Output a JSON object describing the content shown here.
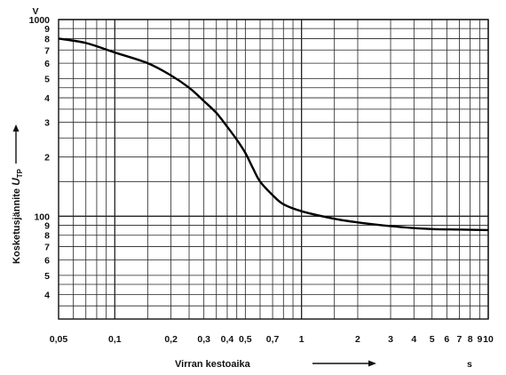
{
  "chart_data": {
    "type": "line",
    "x_scale": "log",
    "y_scale": "log",
    "xlim": [
      0.05,
      10
    ],
    "ylim": [
      30,
      1000
    ],
    "grid": true,
    "ylabel": "Kosketusjännite",
    "ylabel_symbol": "U",
    "ylabel_subscript": "TP",
    "yunit": "V",
    "xlabel": "Virran kestoaika",
    "xunit": "s",
    "x_gridlines": [
      0.05,
      0.06,
      0.07,
      0.08,
      0.09,
      0.1,
      0.15,
      0.2,
      0.25,
      0.3,
      0.35,
      0.4,
      0.45,
      0.5,
      0.6,
      0.7,
      0.8,
      0.9,
      1,
      1.5,
      2,
      3,
      4,
      5,
      6,
      7,
      8,
      9,
      10
    ],
    "y_gridlines": [
      30,
      35,
      40,
      45,
      50,
      60,
      70,
      80,
      90,
      100,
      150,
      200,
      250,
      300,
      350,
      400,
      450,
      500,
      600,
      700,
      800,
      900,
      1000
    ],
    "x_tick_labels": [
      {
        "value": 0.05,
        "label": "0,05"
      },
      {
        "value": 0.1,
        "label": "0,1"
      },
      {
        "value": 0.2,
        "label": "0,2"
      },
      {
        "value": 0.3,
        "label": "0,3"
      },
      {
        "value": 0.4,
        "label": "0,4"
      },
      {
        "value": 0.5,
        "label": "0,5"
      },
      {
        "value": 0.7,
        "label": "0,7"
      },
      {
        "value": 1,
        "label": "1"
      },
      {
        "value": 2,
        "label": "2"
      },
      {
        "value": 3,
        "label": "3"
      },
      {
        "value": 4,
        "label": "4"
      },
      {
        "value": 5,
        "label": "5"
      },
      {
        "value": 6,
        "label": "6"
      },
      {
        "value": 7,
        "label": "7"
      },
      {
        "value": 8,
        "label": "8"
      },
      {
        "value": 9,
        "label": "9"
      },
      {
        "value": 10,
        "label": "10"
      }
    ],
    "y_tick_labels": [
      {
        "value": 1000,
        "label": "1000"
      },
      {
        "value": 900,
        "label": "9"
      },
      {
        "value": 800,
        "label": "8"
      },
      {
        "value": 700,
        "label": "7"
      },
      {
        "value": 600,
        "label": "6"
      },
      {
        "value": 500,
        "label": "5"
      },
      {
        "value": 400,
        "label": "4"
      },
      {
        "value": 300,
        "label": "3"
      },
      {
        "value": 200,
        "label": "2"
      },
      {
        "value": 100,
        "label": "100"
      },
      {
        "value": 90,
        "label": "9"
      },
      {
        "value": 80,
        "label": "8"
      },
      {
        "value": 70,
        "label": "7"
      },
      {
        "value": 60,
        "label": "6"
      },
      {
        "value": 50,
        "label": "5"
      },
      {
        "value": 40,
        "label": "4"
      }
    ],
    "series": [
      {
        "x": [
          0.05,
          0.07,
          0.1,
          0.15,
          0.2,
          0.25,
          0.3,
          0.35,
          0.4,
          0.45,
          0.5,
          0.55,
          0.6,
          0.7,
          0.8,
          1,
          1.5,
          2,
          3,
          4,
          5,
          7,
          10
        ],
        "y": [
          800,
          760,
          680,
          600,
          520,
          450,
          385,
          335,
          285,
          245,
          210,
          175,
          150,
          128,
          115,
          106,
          97,
          93,
          89,
          87,
          86,
          85.5,
          85
        ]
      }
    ]
  }
}
